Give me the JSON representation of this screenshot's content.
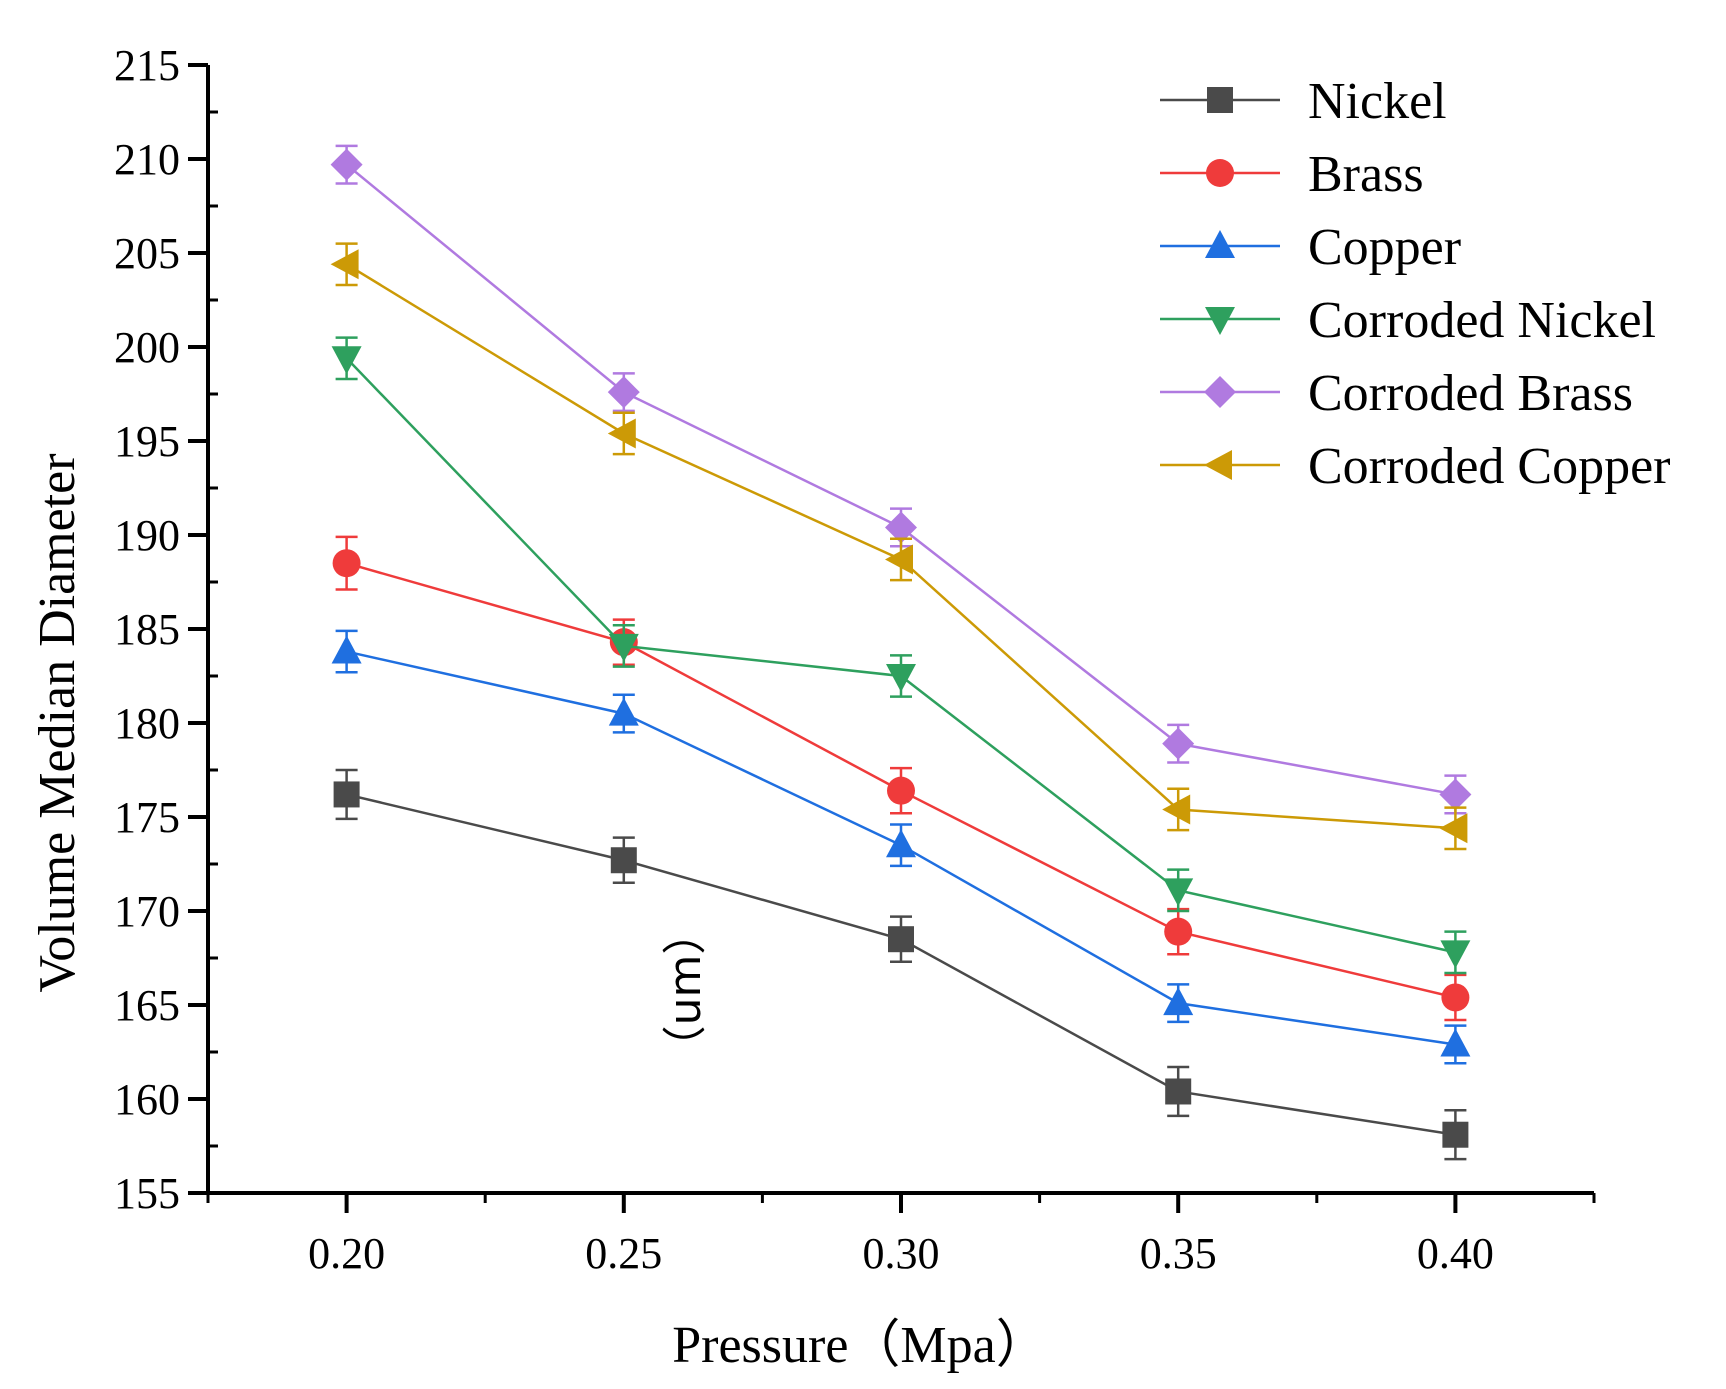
{
  "chart_data": {
    "type": "line",
    "title": "",
    "xlabel": "Pressure（Mpa）",
    "ylabel": "Volume Median Diameter",
    "unit_annotation": "（um）",
    "x": [
      0.2,
      0.25,
      0.3,
      0.35,
      0.4
    ],
    "x_tick_labels": [
      "0.20",
      "0.25",
      "0.30",
      "0.35",
      "0.40"
    ],
    "xlim": [
      0.175,
      0.425
    ],
    "ylim": [
      155,
      215
    ],
    "y_ticks": [
      155,
      160,
      165,
      170,
      175,
      180,
      185,
      190,
      195,
      200,
      205,
      210,
      215
    ],
    "y_tick_labels": [
      "155",
      "160",
      "165",
      "170",
      "175",
      "180",
      "185",
      "190",
      "195",
      "200",
      "205",
      "210",
      "215"
    ],
    "grid": false,
    "legend_position": "top-right",
    "series": [
      {
        "name": "Nickel",
        "color": "#4a4a4a",
        "marker": "square",
        "values": [
          176.2,
          172.7,
          168.5,
          160.4,
          158.1
        ],
        "errors": [
          1.3,
          1.2,
          1.2,
          1.3,
          1.3
        ]
      },
      {
        "name": "Brass",
        "color": "#ef3b3b",
        "marker": "circle",
        "values": [
          188.5,
          184.3,
          176.4,
          168.9,
          165.4
        ],
        "errors": [
          1.4,
          1.2,
          1.2,
          1.2,
          1.2
        ]
      },
      {
        "name": "Copper",
        "color": "#1f6fe0",
        "marker": "triangle-up",
        "values": [
          183.8,
          180.5,
          173.5,
          165.1,
          162.9
        ],
        "errors": [
          1.1,
          1.0,
          1.1,
          1.0,
          1.0
        ]
      },
      {
        "name": "Corroded Nickel",
        "color": "#2ea05e",
        "marker": "triangle-down",
        "values": [
          199.4,
          184.1,
          182.5,
          171.1,
          167.8
        ],
        "errors": [
          1.1,
          1.1,
          1.1,
          1.1,
          1.1
        ]
      },
      {
        "name": "Corroded Brass",
        "color": "#b07ae0",
        "marker": "diamond",
        "values": [
          209.7,
          197.6,
          190.4,
          178.9,
          176.2
        ],
        "errors": [
          1.0,
          1.0,
          1.0,
          1.0,
          1.0
        ]
      },
      {
        "name": "Corroded Copper",
        "color": "#cc9a06",
        "marker": "triangle-left",
        "values": [
          204.4,
          195.4,
          188.7,
          175.4,
          174.4
        ],
        "errors": [
          1.1,
          1.1,
          1.1,
          1.1,
          1.1
        ]
      }
    ]
  }
}
